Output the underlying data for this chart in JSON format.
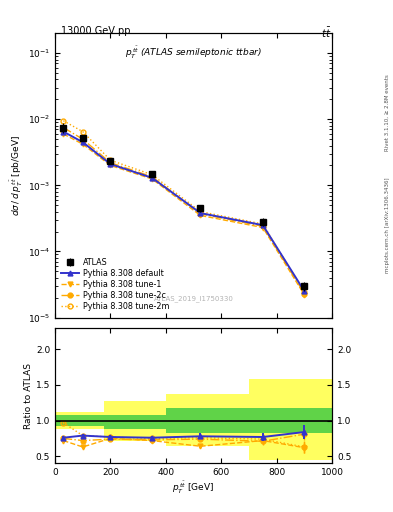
{
  "atlas_x": [
    30,
    100,
    200,
    350,
    525,
    750,
    900
  ],
  "atlas_y": [
    0.0075,
    0.0052,
    0.0023,
    0.0015,
    0.00045,
    0.00028,
    3e-05
  ],
  "atlas_yerr_lo": [
    0.0012,
    0.0005,
    0.0002,
    0.00015,
    6e-05,
    4e-05,
    5e-06
  ],
  "atlas_yerr_hi": [
    0.0012,
    0.0005,
    0.0002,
    0.00015,
    6e-05,
    4e-05,
    5e-06
  ],
  "py_default_x": [
    30,
    100,
    200,
    350,
    525,
    750,
    900
  ],
  "py_default_y": [
    0.0065,
    0.0045,
    0.0021,
    0.0013,
    0.00038,
    0.00025,
    2.5e-05
  ],
  "py_tune1_x": [
    30,
    100,
    200,
    350,
    525,
    750,
    900
  ],
  "py_tune1_y": [
    0.006,
    0.0042,
    0.002,
    0.00125,
    0.00035,
    0.00023,
    2.2e-05
  ],
  "py_tune2c_x": [
    30,
    100,
    200,
    350,
    525,
    750,
    900
  ],
  "py_tune2c_y": [
    0.0075,
    0.005,
    0.0022,
    0.00135,
    0.00037,
    0.00024,
    2.3e-05
  ],
  "py_tune2m_x": [
    30,
    100,
    200,
    350,
    525,
    750,
    900
  ],
  "py_tune2m_y": [
    0.0095,
    0.0065,
    0.0024,
    0.00145,
    0.0004,
    0.00026,
    2.4e-05
  ],
  "ratio_default": [
    0.76,
    0.79,
    0.77,
    0.76,
    0.78,
    0.77,
    0.84
  ],
  "ratio_tune1": [
    0.72,
    0.63,
    0.75,
    0.72,
    0.64,
    0.72,
    0.62
  ],
  "ratio_tune2c": [
    0.75,
    0.72,
    0.74,
    0.73,
    0.74,
    0.71,
    0.81
  ],
  "ratio_tune2m": [
    0.97,
    0.79,
    0.77,
    0.75,
    0.76,
    0.74,
    0.63
  ],
  "ratio_default_err": [
    0.03,
    0.025,
    0.025,
    0.025,
    0.04,
    0.06,
    0.1
  ],
  "ratio_tune1_err": [
    0.02,
    0.02,
    0.02,
    0.02,
    0.03,
    0.05,
    0.08
  ],
  "ratio_tune2c_err": [
    0.02,
    0.02,
    0.02,
    0.02,
    0.03,
    0.05,
    0.08
  ],
  "ratio_tune2m_err": [
    0.02,
    0.02,
    0.02,
    0.02,
    0.03,
    0.05,
    0.08
  ],
  "band_x_edges": [
    0,
    175,
    400,
    700,
    1000
  ],
  "yellow_lo": [
    0.88,
    0.72,
    0.65,
    0.45
  ],
  "yellow_hi": [
    1.12,
    1.28,
    1.38,
    1.58
  ],
  "green_lo": [
    0.92,
    0.88,
    0.82,
    0.82
  ],
  "green_hi": [
    1.08,
    1.08,
    1.18,
    1.18
  ],
  "color_atlas": "#000000",
  "color_default": "#3333cc",
  "color_orange": "#ffaa00",
  "color_yellow_band": "#ffff44",
  "color_green_band": "#44cc44",
  "xlim": [
    0,
    1000
  ],
  "main_ylim_lo": 1e-05,
  "main_ylim_hi": 0.2,
  "ratio_ylim": [
    0.4,
    2.3
  ],
  "ratio_yticks": [
    0.5,
    1.0,
    1.5,
    2.0
  ]
}
